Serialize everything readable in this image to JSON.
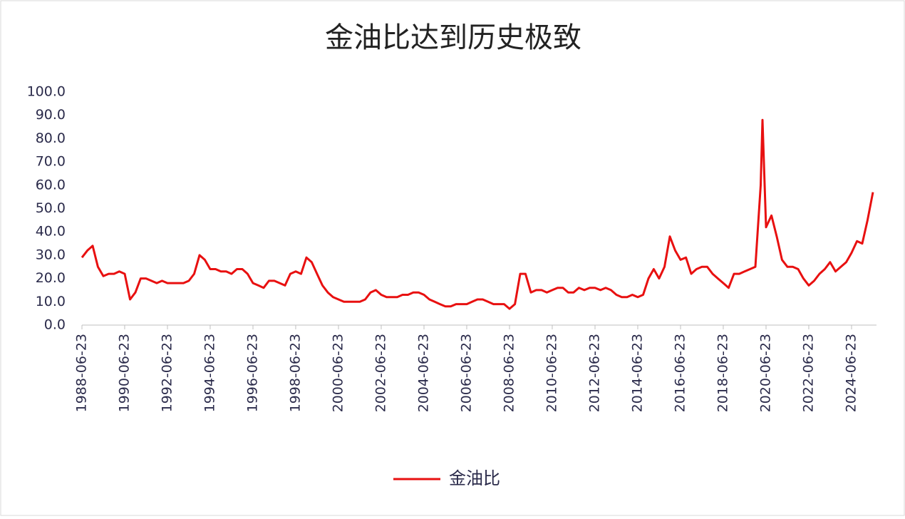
{
  "chart_data": {
    "type": "line",
    "title": "金油比达到历史极致",
    "x": [
      "1988-06-23",
      "1988-09-23",
      "1988-12-23",
      "1989-03-23",
      "1989-06-23",
      "1989-09-23",
      "1989-12-23",
      "1990-03-23",
      "1990-06-23",
      "1990-09-23",
      "1990-12-23",
      "1991-03-23",
      "1991-06-23",
      "1991-09-23",
      "1991-12-23",
      "1992-03-23",
      "1992-06-23",
      "1992-09-23",
      "1992-12-23",
      "1993-03-23",
      "1993-06-23",
      "1993-09-23",
      "1993-12-23",
      "1994-03-23",
      "1994-06-23",
      "1994-09-23",
      "1994-12-23",
      "1995-03-23",
      "1995-06-23",
      "1995-09-23",
      "1995-12-23",
      "1996-03-23",
      "1996-06-23",
      "1996-09-23",
      "1996-12-23",
      "1997-03-23",
      "1997-06-23",
      "1997-09-23",
      "1997-12-23",
      "1998-03-23",
      "1998-06-23",
      "1998-09-23",
      "1998-12-23",
      "1999-03-23",
      "1999-06-23",
      "1999-09-23",
      "1999-12-23",
      "2000-03-23",
      "2000-06-23",
      "2000-09-23",
      "2000-12-23",
      "2001-03-23",
      "2001-06-23",
      "2001-09-23",
      "2001-12-23",
      "2002-03-23",
      "2002-06-23",
      "2002-09-23",
      "2002-12-23",
      "2003-03-23",
      "2003-06-23",
      "2003-09-23",
      "2003-12-23",
      "2004-03-23",
      "2004-06-23",
      "2004-09-23",
      "2004-12-23",
      "2005-03-23",
      "2005-06-23",
      "2005-09-23",
      "2005-12-23",
      "2006-03-23",
      "2006-06-23",
      "2006-09-23",
      "2006-12-23",
      "2007-03-23",
      "2007-06-23",
      "2007-09-23",
      "2007-12-23",
      "2008-03-23",
      "2008-06-23",
      "2008-09-23",
      "2008-12-23",
      "2009-03-23",
      "2009-06-23",
      "2009-09-23",
      "2009-12-23",
      "2010-03-23",
      "2010-06-23",
      "2010-09-23",
      "2010-12-23",
      "2011-03-23",
      "2011-06-23",
      "2011-09-23",
      "2011-12-23",
      "2012-03-23",
      "2012-06-23",
      "2012-09-23",
      "2012-12-23",
      "2013-03-23",
      "2013-06-23",
      "2013-09-23",
      "2013-12-23",
      "2014-03-23",
      "2014-06-23",
      "2014-09-23",
      "2014-12-23",
      "2015-03-23",
      "2015-06-23",
      "2015-09-23",
      "2015-12-23",
      "2016-03-23",
      "2016-06-23",
      "2016-09-23",
      "2016-12-23",
      "2017-03-23",
      "2017-06-23",
      "2017-09-23",
      "2017-12-23",
      "2018-03-23",
      "2018-06-23",
      "2018-09-23",
      "2018-12-23",
      "2019-03-23",
      "2019-06-23",
      "2019-09-23",
      "2019-12-23",
      "2020-03-23",
      "2020-04-23",
      "2020-06-23",
      "2020-09-23",
      "2020-12-23",
      "2021-03-23",
      "2021-06-23",
      "2021-09-23",
      "2021-12-23",
      "2022-03-23",
      "2022-06-23",
      "2022-09-23",
      "2022-12-23",
      "2023-03-23",
      "2023-06-23",
      "2023-09-23",
      "2023-12-23",
      "2024-03-23",
      "2024-06-23",
      "2024-09-23",
      "2024-12-23",
      "2025-03-23",
      "2025-06-23"
    ],
    "series": [
      {
        "name": "金油比",
        "color": "#e81010",
        "values": [
          29,
          32,
          34,
          25,
          21,
          22,
          22,
          23,
          22,
          11,
          14,
          20,
          20,
          19,
          18,
          19,
          18,
          18,
          18,
          18,
          19,
          22,
          30,
          28,
          24,
          24,
          23,
          23,
          22,
          24,
          24,
          22,
          18,
          17,
          16,
          19,
          19,
          18,
          17,
          22,
          23,
          22,
          29,
          27,
          22,
          17,
          14,
          12,
          11,
          10,
          10,
          10,
          10,
          11,
          14,
          15,
          13,
          12,
          12,
          12,
          13,
          13,
          14,
          14,
          13,
          11,
          10,
          9,
          8,
          8,
          9,
          9,
          9,
          10,
          11,
          11,
          10,
          9,
          9,
          9,
          7,
          9,
          22,
          22,
          14,
          15,
          15,
          14,
          15,
          16,
          16,
          14,
          14,
          16,
          15,
          16,
          16,
          15,
          16,
          15,
          13,
          12,
          12,
          13,
          12,
          13,
          20,
          24,
          20,
          25,
          38,
          32,
          28,
          29,
          22,
          24,
          25,
          25,
          22,
          20,
          18,
          16,
          22,
          22,
          23,
          24,
          25,
          60,
          88,
          42,
          47,
          38,
          28,
          25,
          25,
          24,
          20,
          17,
          19,
          22,
          24,
          27,
          23,
          25,
          27,
          31,
          36,
          35,
          45,
          57
        ]
      }
    ],
    "xlim": [
      "1988-06-23",
      "2025-08-23"
    ],
    "xticks": [
      "1988-06-23",
      "1990-06-23",
      "1992-06-23",
      "1994-06-23",
      "1996-06-23",
      "1998-06-23",
      "2000-06-23",
      "2002-06-23",
      "2004-06-23",
      "2006-06-23",
      "2008-06-23",
      "2010-06-23",
      "2012-06-23",
      "2014-06-23",
      "2016-06-23",
      "2018-06-23",
      "2020-06-23",
      "2022-06-23",
      "2024-06-23"
    ],
    "ylim": [
      0,
      100
    ],
    "yticks": [
      {
        "value": 0,
        "label": "0.0"
      },
      {
        "value": 10,
        "label": "10.0"
      },
      {
        "value": 20,
        "label": "20.0"
      },
      {
        "value": 30,
        "label": "30.0"
      },
      {
        "value": 40,
        "label": "40.0"
      },
      {
        "value": 50,
        "label": "50.0"
      },
      {
        "value": 60,
        "label": "60.0"
      },
      {
        "value": 70,
        "label": "70.0"
      },
      {
        "value": 80,
        "label": "80.0"
      },
      {
        "value": 90,
        "label": "90.0"
      },
      {
        "value": 100,
        "label": "100.0"
      }
    ],
    "legend": "bottom"
  }
}
